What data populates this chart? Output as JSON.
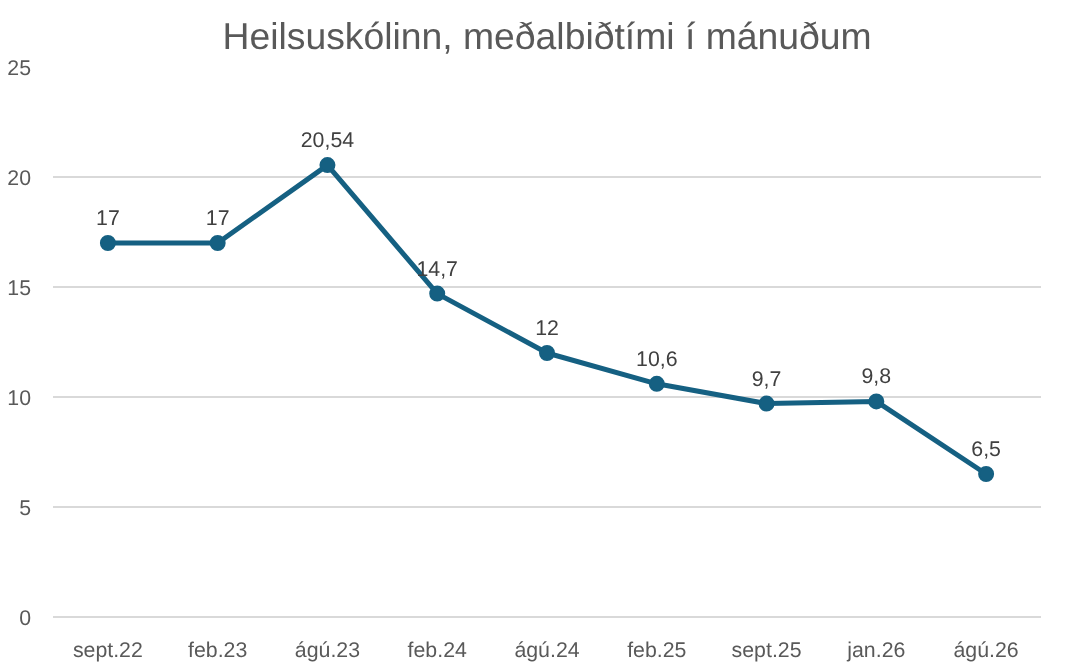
{
  "chart_data": {
    "type": "line",
    "title": "Heilsuskólinn, meðalbiðtími í mánuðum",
    "categories": [
      "sept.22",
      "feb.23",
      "ágú.23",
      "feb.24",
      "ágú.24",
      "feb.25",
      "sept.25",
      "jan.26",
      "ágú.26"
    ],
    "series": [
      {
        "color": "#156082",
        "values": [
          17,
          17,
          20.54,
          14.7,
          12,
          10.6,
          9.7,
          9.8,
          6.5
        ],
        "value_labels": [
          "17",
          "17",
          "20,54",
          "14,7",
          "12",
          "10,6",
          "9,7",
          "9,8",
          "6,5"
        ]
      }
    ],
    "ylim": [
      0,
      25
    ],
    "yticks": [
      0,
      5,
      10,
      15,
      20,
      25
    ],
    "grid": "y",
    "marker": "circle",
    "line_style": "solid"
  }
}
